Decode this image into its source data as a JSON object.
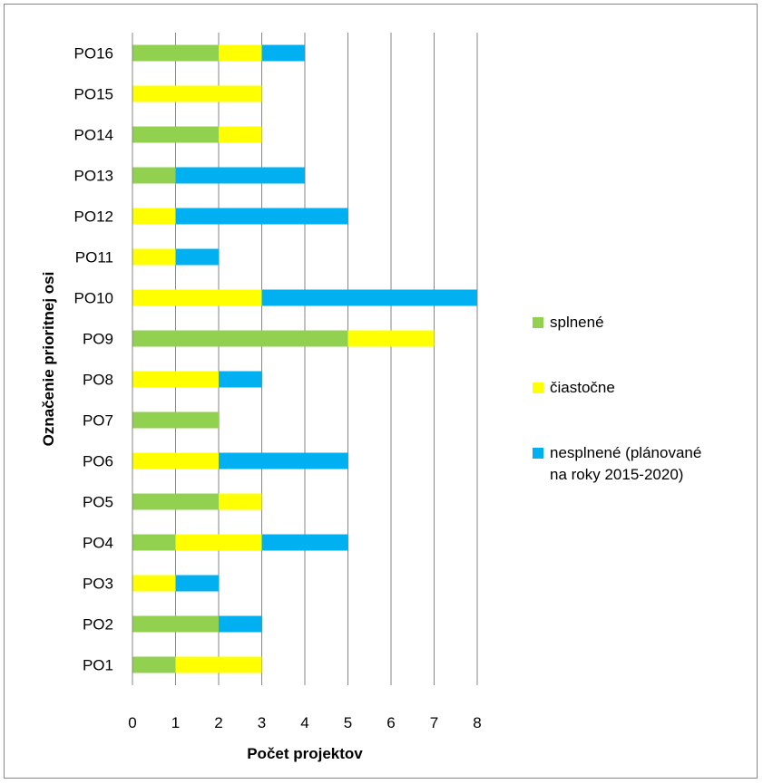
{
  "chart_data": {
    "type": "bar",
    "orientation": "horizontal",
    "stacked": true,
    "categories": [
      "PO1",
      "PO2",
      "PO3",
      "PO4",
      "PO5",
      "PO6",
      "PO7",
      "PO8",
      "PO9",
      "PO10",
      "PO11",
      "PO12",
      "PO13",
      "PO14",
      "PO15",
      "PO16"
    ],
    "series": [
      {
        "name": "splnené",
        "color": "#92d050",
        "values": [
          1,
          2,
          0,
          1,
          2,
          0,
          2,
          0,
          5,
          0,
          0,
          0,
          1,
          2,
          0,
          2
        ]
      },
      {
        "name": "čiastočne",
        "color": "#ffff00",
        "values": [
          2,
          0,
          1,
          2,
          1,
          2,
          0,
          2,
          2,
          3,
          1,
          1,
          0,
          1,
          3,
          1
        ]
      },
      {
        "name": "nesplnené (plánované na roky 2015-2020)",
        "color": "#00b0f0",
        "values": [
          0,
          1,
          1,
          2,
          0,
          3,
          0,
          1,
          0,
          5,
          1,
          4,
          3,
          0,
          0,
          1
        ]
      }
    ],
    "xlabel": "Počet projektov",
    "ylabel": "Označenie prioritnej osi",
    "xlim": [
      0,
      8
    ],
    "xticks": [
      0,
      1,
      2,
      3,
      4,
      5,
      6,
      7,
      8
    ],
    "grid": "vertical",
    "legend_position": "right"
  }
}
